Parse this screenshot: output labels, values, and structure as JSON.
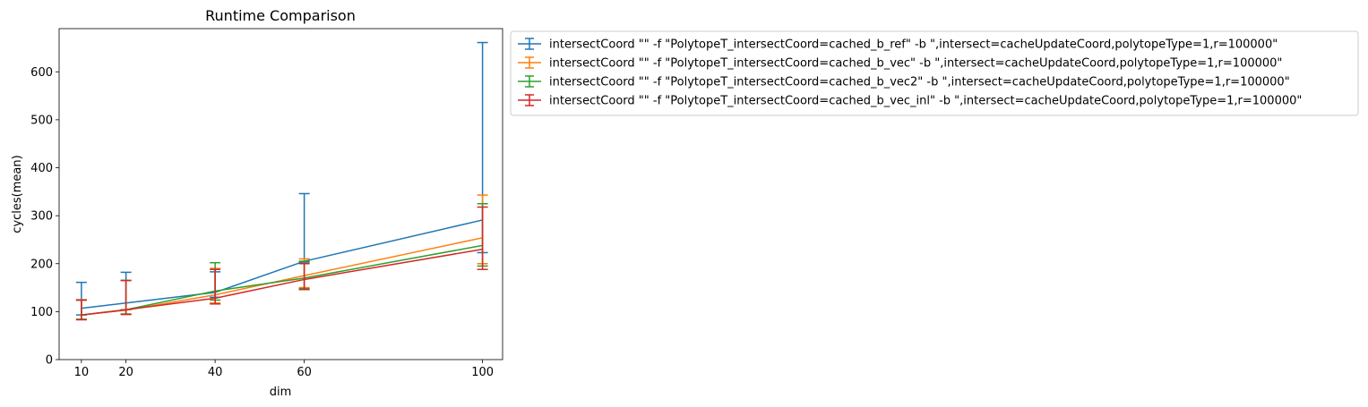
{
  "chart_data": {
    "type": "line",
    "title": "Runtime Comparison",
    "xlabel": "dim",
    "ylabel": "cycles(mean)",
    "x": [
      10,
      20,
      40,
      60,
      100
    ],
    "x_ticks": [
      10,
      20,
      40,
      60,
      100
    ],
    "y_ticks": [
      0,
      100,
      200,
      300,
      400,
      500,
      600
    ],
    "xlim": [
      5,
      104.5
    ],
    "ylim": [
      0,
      690
    ],
    "grid": false,
    "error_bars": true,
    "legend_placement": "outside upper right",
    "series": [
      {
        "name": "intersectCoord \"\" -f \"PolytopeT_intersectCoord=cached_b_ref\" -b \",intersect=cacheUpdateCoord,polytopeType=1,r=100000\"",
        "color": "#1f77b4",
        "values": [
          107,
          118,
          140,
          205,
          291
        ],
        "err_low": [
          93,
          104,
          130,
          203,
          223
        ],
        "err_high": [
          161,
          182,
          183,
          346,
          661
        ]
      },
      {
        "name": "intersectCoord \"\" -f \"PolytopeT_intersectCoord=cached_b_vec\" -b \",intersect=cacheUpdateCoord,polytopeType=1,r=100000\"",
        "color": "#ff7f0e",
        "values": [
          93,
          103,
          135,
          175,
          254
        ],
        "err_low": [
          84,
          95,
          118,
          150,
          200
        ],
        "err_high": [
          125,
          165,
          190,
          210,
          343
        ]
      },
      {
        "name": "intersectCoord \"\" -f \"PolytopeT_intersectCoord=cached_b_vec2\" -b \",intersect=cacheUpdateCoord,polytopeType=1,r=100000\"",
        "color": "#2ca02c",
        "values": [
          93,
          104,
          143,
          170,
          238
        ],
        "err_low": [
          84,
          95,
          124,
          148,
          195
        ],
        "err_high": [
          124,
          165,
          202,
          205,
          325
        ]
      },
      {
        "name": "intersectCoord \"\" -f \"PolytopeT_intersectCoord=cached_b_vec_inl\" -b \",intersect=cacheUpdateCoord,polytopeType=1,r=100000\"",
        "color": "#d62728",
        "values": [
          93,
          104,
          128,
          167,
          230
        ],
        "err_low": [
          83,
          94,
          116,
          146,
          188
        ],
        "err_high": [
          124,
          165,
          188,
          200,
          318
        ]
      }
    ]
  }
}
